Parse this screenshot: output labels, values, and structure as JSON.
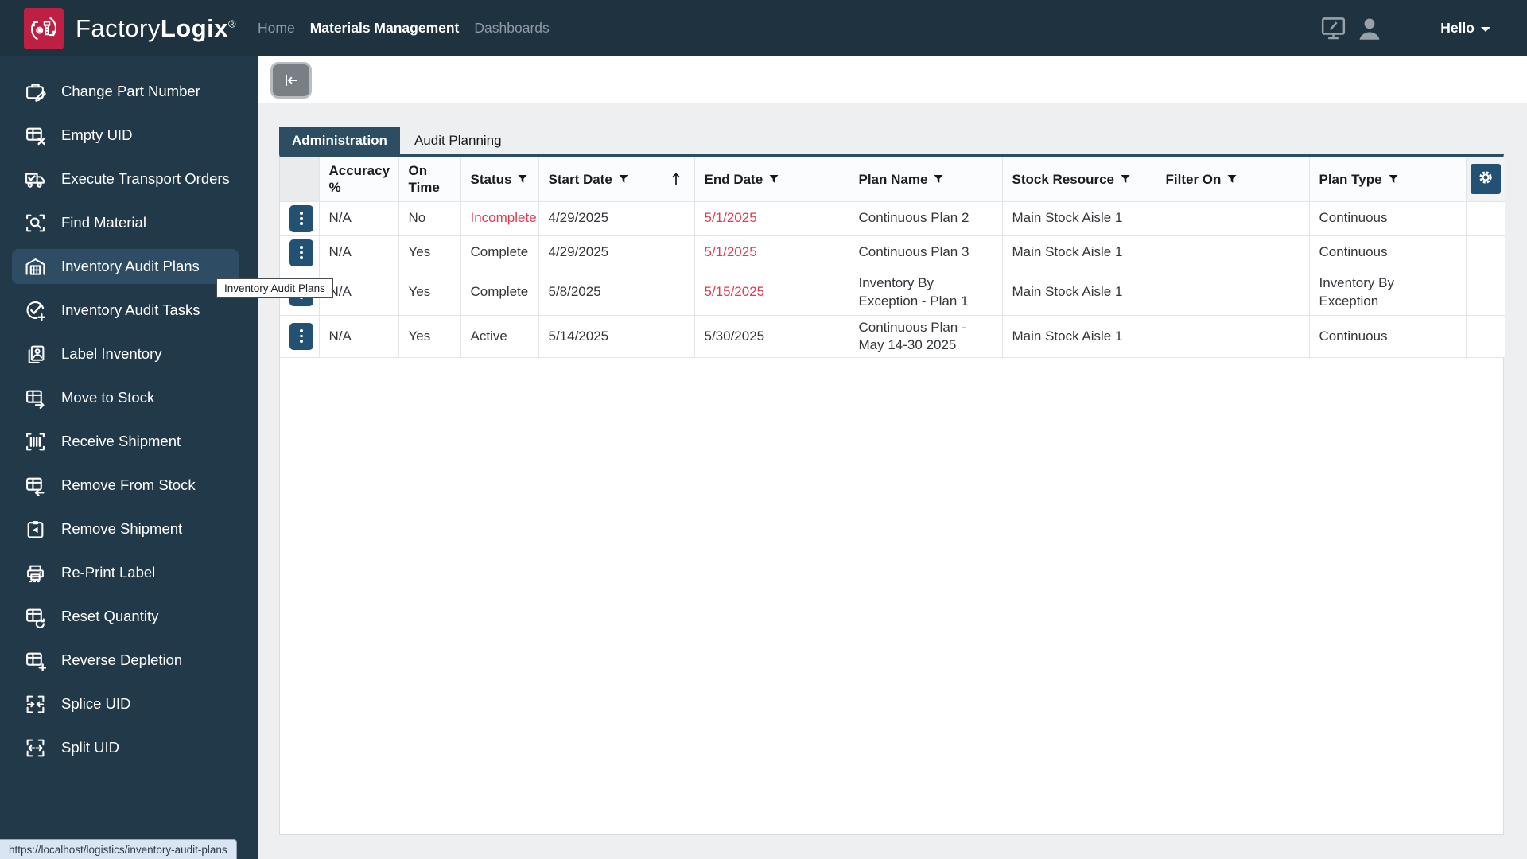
{
  "brand": {
    "factory": "Factory",
    "logix": "Logix",
    "reg": "®"
  },
  "topnav": {
    "items": [
      {
        "label": "Home",
        "active": false
      },
      {
        "label": "Materials Management",
        "active": true
      },
      {
        "label": "Dashboards",
        "active": false
      }
    ]
  },
  "topbar_icons": [
    {
      "name": "monitor-edit-icon"
    },
    {
      "name": "user-avatar-icon"
    }
  ],
  "user": {
    "greeting": "Hello"
  },
  "sidebar": {
    "items": [
      {
        "label": "Change Part Number",
        "icon": "briefcase-pencil-icon",
        "active": false
      },
      {
        "label": "Empty UID",
        "icon": "grid-x-icon",
        "active": false
      },
      {
        "label": "Execute Transport Orders",
        "icon": "truck-check-icon",
        "active": false
      },
      {
        "label": "Find Material",
        "icon": "scan-search-icon",
        "active": false
      },
      {
        "label": "Inventory Audit Plans",
        "icon": "warehouse-icon",
        "active": true
      },
      {
        "label": "Inventory Audit Tasks",
        "icon": "check-circle-plus-icon",
        "active": false
      },
      {
        "label": "Label Inventory",
        "icon": "id-cards-icon",
        "active": false
      },
      {
        "label": "Move to Stock",
        "icon": "grid-arrow-right-icon",
        "active": false
      },
      {
        "label": "Receive Shipment",
        "icon": "scan-barcode-icon",
        "active": false
      },
      {
        "label": "Remove From Stock",
        "icon": "grid-arrow-left-icon",
        "active": false
      },
      {
        "label": "Remove Shipment",
        "icon": "clipboard-arrow-icon",
        "active": false
      },
      {
        "label": "Re-Print Label",
        "icon": "printer-icon",
        "active": false
      },
      {
        "label": "Reset Quantity",
        "icon": "grid-refresh-icon",
        "active": false
      },
      {
        "label": "Reverse Depletion",
        "icon": "grid-plus-icon",
        "active": false
      },
      {
        "label": "Splice UID",
        "icon": "arrows-in-icon",
        "active": false
      },
      {
        "label": "Split UID",
        "icon": "arrows-out-icon",
        "active": false
      }
    ]
  },
  "tabs": {
    "items": [
      {
        "label": "Administration",
        "active": true
      },
      {
        "label": "Audit Planning",
        "active": false
      }
    ]
  },
  "table": {
    "columns": [
      {
        "label": "",
        "key": "actions",
        "filter": false
      },
      {
        "label": "Accuracy %",
        "filter": false
      },
      {
        "label": "On Time",
        "filter": false
      },
      {
        "label": "Status",
        "filter": true
      },
      {
        "label": "Start Date",
        "filter": true,
        "sorted": "asc"
      },
      {
        "label": "End Date",
        "filter": true
      },
      {
        "label": "Plan Name",
        "filter": true
      },
      {
        "label": "Stock Resource",
        "filter": true
      },
      {
        "label": "Filter On",
        "filter": true
      },
      {
        "label": "Plan Type",
        "filter": true
      },
      {
        "label": "",
        "key": "settings",
        "filter": false,
        "icon": "gear-icon"
      }
    ],
    "rows": [
      {
        "accuracy": "N/A",
        "on_time": "No",
        "status": "Incomplete",
        "status_alert": true,
        "start": "4/29/2025",
        "end": "5/1/2025",
        "end_alert": true,
        "plan_name": "Continuous Plan 2",
        "stock": "Main Stock Aisle 1",
        "filter_on": "",
        "plan_type": "Continuous"
      },
      {
        "accuracy": "N/A",
        "on_time": "Yes",
        "status": "Complete",
        "status_alert": false,
        "start": "4/29/2025",
        "end": "5/1/2025",
        "end_alert": true,
        "plan_name": "Continuous Plan 3",
        "stock": "Main Stock Aisle 1",
        "filter_on": "",
        "plan_type": "Continuous"
      },
      {
        "accuracy": "N/A",
        "on_time": "Yes",
        "status": "Complete",
        "status_alert": false,
        "start": "5/8/2025",
        "end": "5/15/2025",
        "end_alert": true,
        "plan_name": "Inventory By Exception - Plan 1",
        "stock": "Main Stock Aisle 1",
        "filter_on": "",
        "plan_type": "Inventory By Exception"
      },
      {
        "accuracy": "N/A",
        "on_time": "Yes",
        "status": "Active",
        "status_alert": false,
        "start": "5/14/2025",
        "end": "5/30/2025",
        "end_alert": false,
        "plan_name": "Continuous Plan - May 14-30 2025",
        "stock": "Main Stock Aisle 1",
        "filter_on": "",
        "plan_type": "Continuous"
      }
    ]
  },
  "tooltip": {
    "text": "Inventory Audit Plans"
  },
  "statusbar": {
    "url": "https://localhost/logistics/inventory-audit-plans"
  },
  "colors": {
    "topbar": "#1e3240",
    "sidebar": "#22394a",
    "selected_item": "#2e4c63",
    "accent": "#2d4d63",
    "button_blue": "#235173",
    "logo_red": "#c01f44",
    "alert_red": "#e5384e"
  }
}
